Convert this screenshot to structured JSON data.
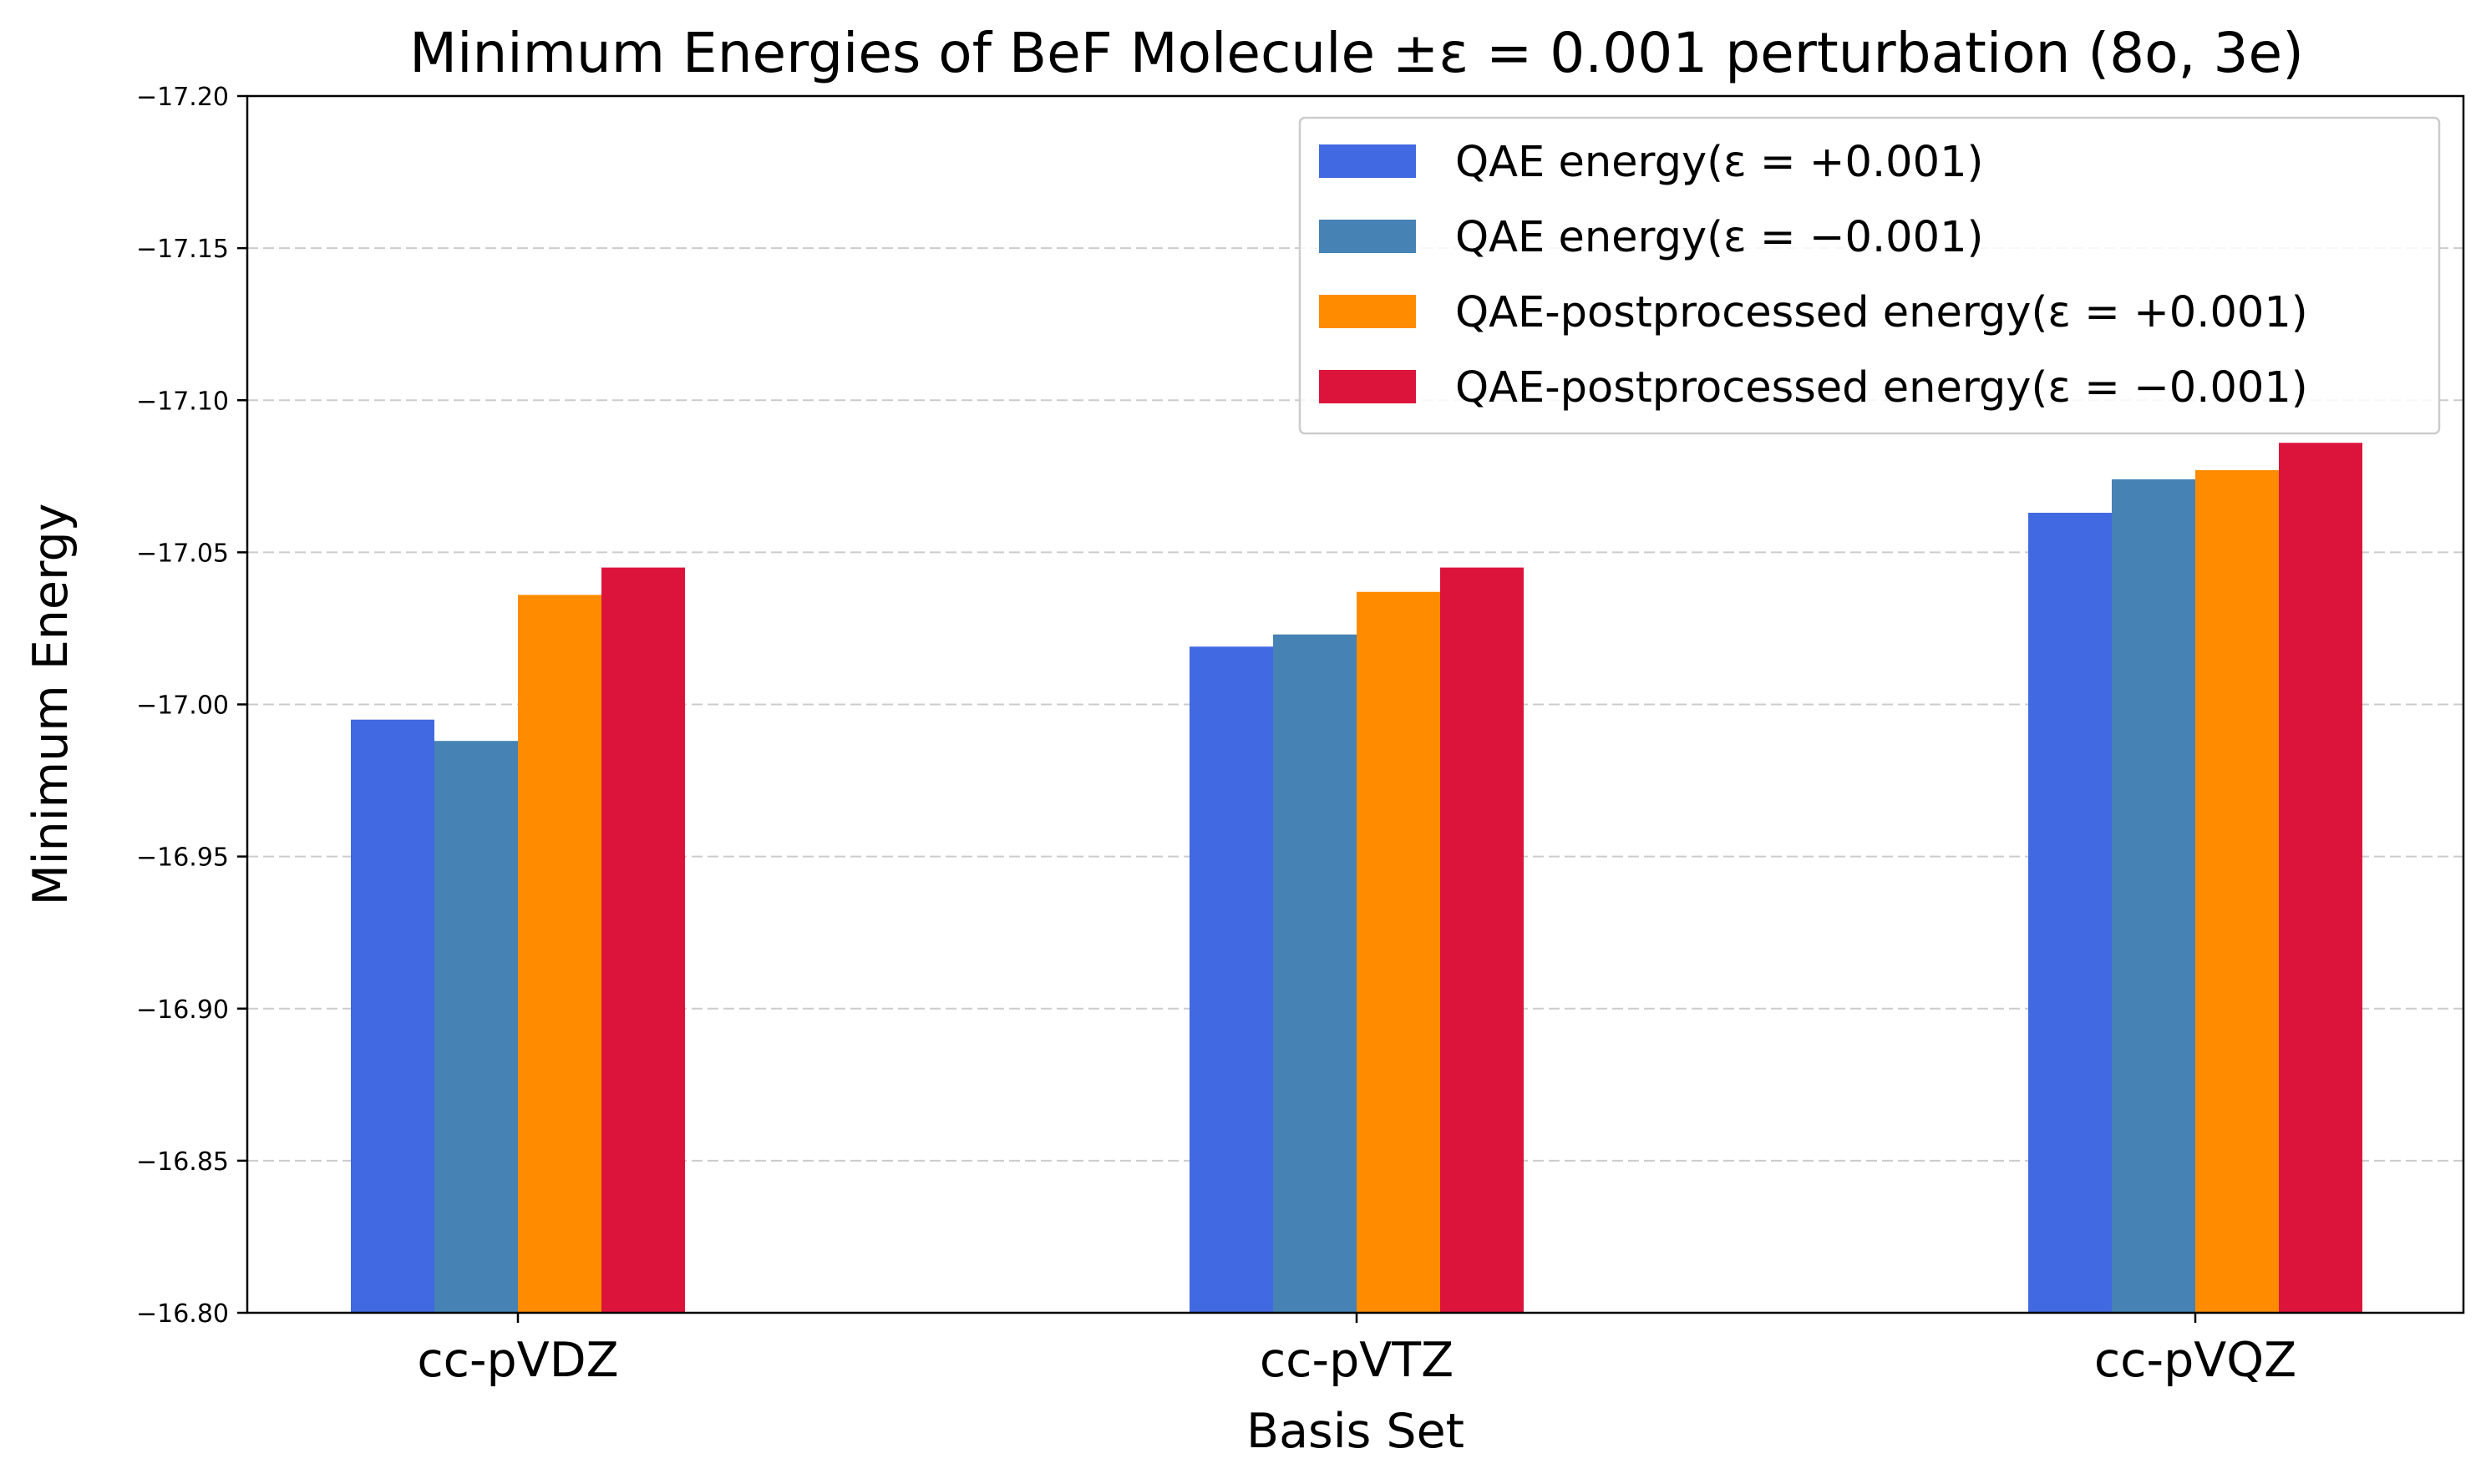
{
  "chart_data": {
    "type": "bar",
    "title": "Minimum Energies of BeF Molecule ±ε = 0.001 perturbation (8o, 3e)",
    "xlabel": "Basis Set",
    "ylabel": "Minimum Energy",
    "categories": [
      "cc-pVDZ",
      "cc-pVTZ",
      "cc-pVQZ"
    ],
    "ylim": [
      -16.8,
      -17.2
    ],
    "y_inverted": true,
    "yticks": [
      -17.2,
      -17.15,
      -17.1,
      -17.05,
      -17.0,
      -16.95,
      -16.9,
      -16.85,
      -16.8
    ],
    "ytick_labels": [
      "−17.20",
      "−17.15",
      "−17.10",
      "−17.05",
      "−17.00",
      "−16.95",
      "−16.90",
      "−16.85",
      "−16.80"
    ],
    "grid": "y-dashed",
    "legend_position": "top-right",
    "series": [
      {
        "name": "QAE energy(ε = +0.001)",
        "color": "#4169E1",
        "values": [
          -16.995,
          -17.019,
          -17.063
        ]
      },
      {
        "name": "QAE energy(ε = −0.001)",
        "color": "#4682B4",
        "values": [
          -16.988,
          -17.023,
          -17.074
        ]
      },
      {
        "name": "QAE-postprocessed energy(ε = +0.001)",
        "color": "#FF8C00",
        "values": [
          -17.036,
          -17.037,
          -17.077
        ]
      },
      {
        "name": "QAE-postprocessed energy(ε = −0.001)",
        "color": "#DC143C",
        "values": [
          -17.045,
          -17.045,
          -17.086
        ]
      }
    ]
  }
}
